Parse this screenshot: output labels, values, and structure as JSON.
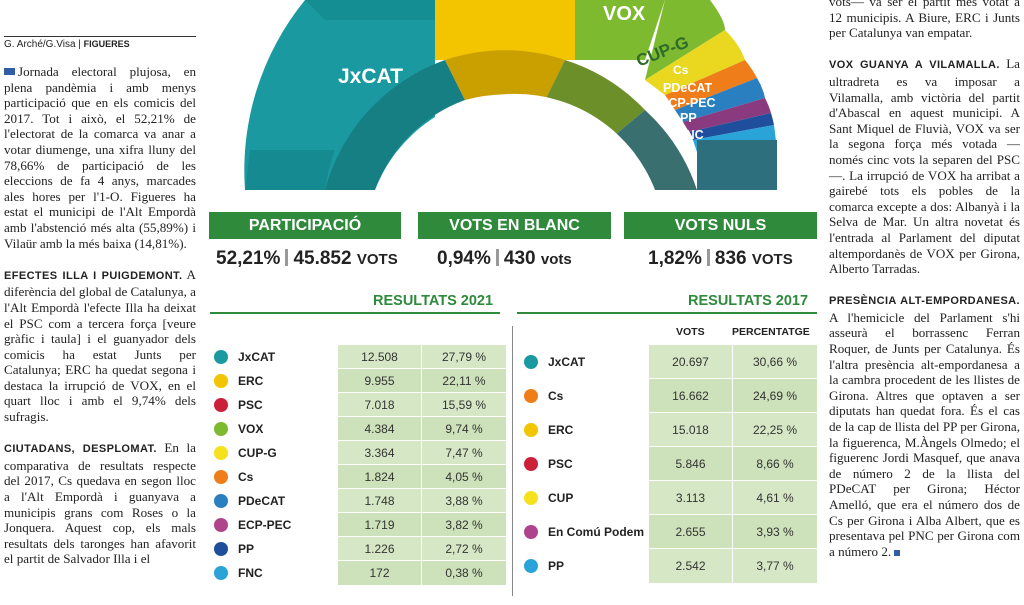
{
  "credit": {
    "authors": "G. Arché/G.Visa",
    "section": "FIGUERES"
  },
  "left_paragraphs": [
    {
      "kw": "",
      "text": "Jornada electoral plujosa, en plena pandèmia i amb menys participació que en els comicis del 2017. Tot i això, el 52,21% de l'electorat de la comarca va anar a votar diumenge, una xifra lluny del 78,66% de participació de les eleccions de fa 4 anys, marcades ales hores per l'1-O. Figueres ha estat el municipi de l'Alt Empordà amb l'abstenció més alta (55,89%) i Vilaür amb la més baixa (14,81%)."
    },
    {
      "kw": "EFECTES ILLA I PUIGDEMONT.",
      "text": "A diferència del global de Catalunya, a l'Alt Empordà l'efecte Illa ha deixat el PSC com a tercera força [veure gràfic i taula] i el guanyador dels comicis ha estat Junts per Catalunya; ERC ha quedat segona i destaca la irrupció de VOX, en el quart lloc i amb el 9,74% dels sufragis."
    },
    {
      "kw": "CIUTADANS, DESPLOMAT.",
      "text": "En la comparativa de resultats respecte del 2017, Cs quedava en segon lloc a l'Alt Empordà i guanyava a municipis grans com Roses o la Jonquera. Aquest cop, els mals resultats dels taronges han afavorit el partit de Salvador Illa i el"
    }
  ],
  "right_paragraphs": [
    {
      "kw": "",
      "text": "vots— va ser el partit més votat a 12 municipis. A Biure, ERC i Junts per Catalunya van empatar."
    },
    {
      "kw": "VOX GUANYA A VILAMALLA.",
      "text": "La ultradreta es va imposar a Vilamalla, amb victòria del partit d'Abascal en aquest municipi. A Sant Miquel de Fluvià, VOX va ser la segona força més votada —només cinc vots la separen del PSC—. La irrupció de VOX ha arribat a gairebé tots els pobles de la comarca excepte a dos: Albanyà i la Selva de Mar. Un altra novetat és l'entrada al Parlament del diputat altempordanès de VOX per Girona, Alberto Tarradas."
    },
    {
      "kw": "PRESÈNCIA ALT-EMPORDANESA.",
      "text": "A l'hemicicle del Parlament s'hi asseurà el borrassenc Ferran Roquer, de Junts per Catalunya. És l'altra presència alt-empordanesa a la cambra procedent de les llistes de Girona. Altres que optaven a ser diputats han quedat fora. És el cas de la cap de llista del PP per Girona, la figuerenca, M.Àngels Olmedo; el figuerenc Jordi Masquef, que anava de número 2 de la llista del PDeCAT per Girona; Héctor Amelló, que era el número dos de Cs per Girona i Alba Albert, que es presentava pel PNC per Girona com a número 2."
    }
  ],
  "hemicycle_labels": [
    "JxCAT",
    "VOX",
    "CUP-G",
    "Cs",
    "PDeCAT",
    "ECP-PEC",
    "PP",
    "FNC"
  ],
  "stats": [
    {
      "label": "PARTICIPACIÓ",
      "pct": "52,21%",
      "votes": "45.852",
      "unit": "VOTS"
    },
    {
      "label": "VOTS EN BLANC",
      "pct": "0,94%",
      "votes": "430",
      "unit": "vots"
    },
    {
      "label": "VOTS NULS",
      "pct": "1,82%",
      "votes": "836",
      "unit": "VOTS"
    }
  ],
  "results_2021": {
    "title": "RESULTATS 2021",
    "rows": [
      {
        "party": "JxCAT",
        "votes": "12.508",
        "pct": "27,79 %",
        "color": "#1a9aa0"
      },
      {
        "party": "ERC",
        "votes": "9.955",
        "pct": "22,11 %",
        "color": "#f2c500"
      },
      {
        "party": "PSC",
        "votes": "7.018",
        "pct": "15,59 %",
        "color": "#cc1f3a"
      },
      {
        "party": "VOX",
        "votes": "4.384",
        "pct": "9,74 %",
        "color": "#7dba2f"
      },
      {
        "party": "CUP-G",
        "votes": "3.364",
        "pct": "7,47 %",
        "color": "#f5e21c"
      },
      {
        "party": "Cs",
        "votes": "1.824",
        "pct": "4,05 %",
        "color": "#ef7d1a"
      },
      {
        "party": "PDeCAT",
        "votes": "1.748",
        "pct": "3,88 %",
        "color": "#2a7fc0"
      },
      {
        "party": "ECP-PEC",
        "votes": "1.719",
        "pct": "3,82 %",
        "color": "#b0448c"
      },
      {
        "party": "PP",
        "votes": "1.226",
        "pct": "2,72 %",
        "color": "#1f4f9c"
      },
      {
        "party": "FNC",
        "votes": "172",
        "pct": "0,38 %",
        "color": "#2aa3d8"
      }
    ]
  },
  "results_2017": {
    "title": "RESULTATS 2017",
    "col_votes": "VOTS",
    "col_pct": "PERCENTATGE",
    "rows": [
      {
        "party": "JxCAT",
        "votes": "20.697",
        "pct": "30,66 %",
        "color": "#1a9aa0"
      },
      {
        "party": "Cs",
        "votes": "16.662",
        "pct": "24,69 %",
        "color": "#ef7d1a"
      },
      {
        "party": "ERC",
        "votes": "15.018",
        "pct": "22,25 %",
        "color": "#f2c500"
      },
      {
        "party": "PSC",
        "votes": "5.846",
        "pct": "8,66 %",
        "color": "#cc1f3a"
      },
      {
        "party": "CUP",
        "votes": "3.113",
        "pct": "4,61 %",
        "color": "#f5e21c"
      },
      {
        "party": "En Comú Podem",
        "votes": "2.655",
        "pct": "3,93 %",
        "color": "#b0448c"
      },
      {
        "party": "PP",
        "votes": "2.542",
        "pct": "3,77 %",
        "color": "#2aa3d8"
      }
    ]
  }
}
